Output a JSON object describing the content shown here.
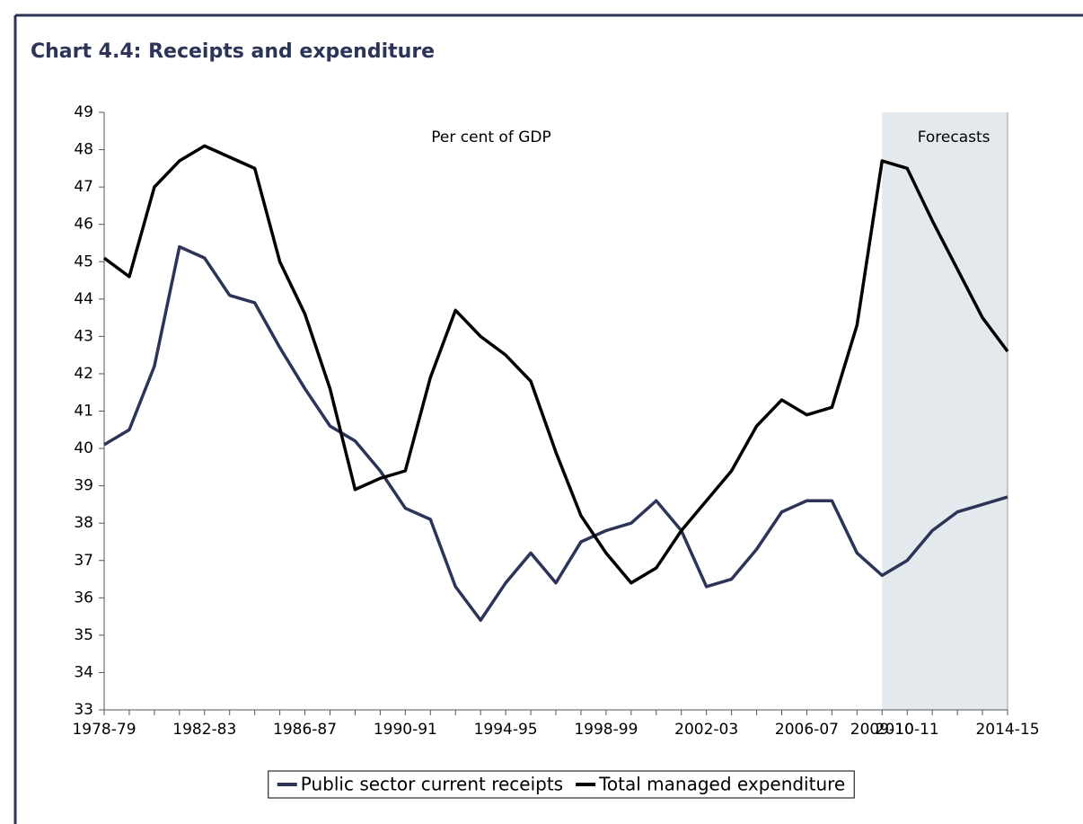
{
  "chart_data": {
    "type": "line",
    "title": "Chart 4.4: Receipts and expenditure",
    "annotation": "Per cent of GDP",
    "shaded": {
      "label": "Forecasts",
      "from": "2009-10",
      "to": "2014-15",
      "color": "#e4e9ee"
    },
    "categories": [
      "1978-79",
      null,
      null,
      null,
      "1982-83",
      null,
      null,
      null,
      "1986-87",
      null,
      null,
      null,
      "1990-91",
      null,
      null,
      null,
      "1994-95",
      null,
      null,
      null,
      "1998-99",
      null,
      null,
      null,
      "2002-03",
      null,
      null,
      null,
      "2006-07",
      null,
      null,
      "2009-10",
      "2010-11",
      null,
      null,
      null,
      "2014-15"
    ],
    "series": [
      {
        "name": "Public sector current receipts",
        "color": "#2c3557",
        "values": [
          40.1,
          40.5,
          42.2,
          45.4,
          45.1,
          44.1,
          43.9,
          42.7,
          41.6,
          40.6,
          40.2,
          39.4,
          38.4,
          38.1,
          36.3,
          35.4,
          36.4,
          37.2,
          36.4,
          37.5,
          37.8,
          38.0,
          38.6,
          37.8,
          36.3,
          36.5,
          37.3,
          38.3,
          38.6,
          38.6,
          37.2,
          36.6,
          37.0,
          37.8,
          38.3,
          38.5,
          38.7
        ]
      },
      {
        "name": "Total managed expenditure",
        "color": "#000000",
        "values": [
          45.1,
          44.6,
          47.0,
          47.7,
          48.1,
          47.8,
          47.5,
          45.0,
          43.6,
          41.6,
          38.9,
          39.2,
          39.4,
          41.9,
          43.7,
          43.0,
          42.5,
          41.8,
          39.9,
          38.2,
          37.2,
          36.4,
          36.8,
          37.8,
          38.6,
          39.4,
          40.6,
          41.3,
          40.9,
          41.1,
          43.3,
          47.7,
          47.5,
          46.1,
          44.8,
          43.5,
          42.6
        ]
      }
    ],
    "ylim": [
      33,
      49
    ],
    "yticks": [
      33,
      34,
      35,
      36,
      37,
      38,
      39,
      40,
      41,
      42,
      43,
      44,
      45,
      46,
      47,
      48,
      49
    ],
    "grid": false,
    "legend": "bottom"
  }
}
